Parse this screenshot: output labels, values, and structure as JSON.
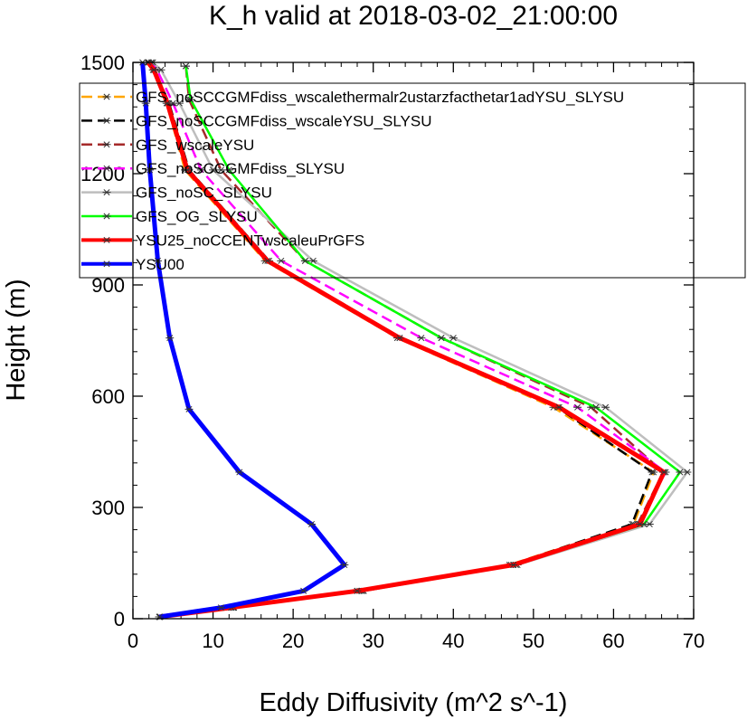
{
  "chart_data": {
    "type": "line",
    "title": "K_h valid at 2018-03-02_21:00:00",
    "xlabel": "Eddy Diffusivity (m^2 s^-1)",
    "ylabel": "Height (m)",
    "xlim": [
      0,
      70
    ],
    "ylim": [
      0,
      1500
    ],
    "x_ticks": [
      0,
      10,
      20,
      30,
      40,
      50,
      60,
      70
    ],
    "y_ticks": [
      0,
      300,
      600,
      900,
      1200,
      1500
    ],
    "legend_position": "top-right",
    "series": [
      {
        "name": "GFS_noSCCGMFdiss_wscalethermalr2ustarzfacthetar1adYSU_SLYSU",
        "color": "#ffa500",
        "dash": "dashed",
        "width": 2.5,
        "points": [
          [
            3.3,
            5
          ],
          [
            12,
            30
          ],
          [
            28,
            75
          ],
          [
            47,
            145
          ],
          [
            62.5,
            255
          ],
          [
            65,
            395
          ],
          [
            52.5,
            570
          ],
          [
            33,
            757
          ],
          [
            16.5,
            965
          ],
          [
            6.5,
            1210
          ],
          [
            4.2,
            1390
          ],
          [
            2.5,
            1480
          ],
          [
            1.8,
            1500
          ]
        ]
      },
      {
        "name": "GFS_noSCCGMFdiss_wscaleYSU_SLYSU",
        "color": "#000000",
        "dash": "dashed",
        "width": 2.5,
        "points": [
          [
            3.3,
            5
          ],
          [
            12.2,
            30
          ],
          [
            28.3,
            75
          ],
          [
            47.2,
            145
          ],
          [
            62.3,
            255
          ],
          [
            64.8,
            395
          ],
          [
            53,
            570
          ],
          [
            33.3,
            757
          ],
          [
            17,
            965
          ],
          [
            7,
            1210
          ],
          [
            4.5,
            1390
          ],
          [
            2.7,
            1480
          ],
          [
            2,
            1500
          ]
        ]
      },
      {
        "name": "GFS_wscaleYSU",
        "color": "#a52a2a",
        "dash": "dashed",
        "width": 2.5,
        "points": [
          [
            3.3,
            5
          ],
          [
            12.5,
            30
          ],
          [
            28.8,
            75
          ],
          [
            47.8,
            145
          ],
          [
            63,
            255
          ],
          [
            66.2,
            395
          ],
          [
            57.2,
            570
          ],
          [
            38.5,
            757
          ],
          [
            21.5,
            965
          ],
          [
            11,
            1210
          ],
          [
            7,
            1400
          ],
          [
            6.6,
            1490
          ]
        ]
      },
      {
        "name": "GFS_noSCCGMFdiss_SLYSU",
        "color": "#ff00ff",
        "dash": "dashed",
        "width": 2.5,
        "points": [
          [
            3.3,
            5
          ],
          [
            12.5,
            30
          ],
          [
            28.5,
            75
          ],
          [
            47.5,
            145
          ],
          [
            63.2,
            255
          ],
          [
            66.5,
            395
          ],
          [
            55.5,
            570
          ],
          [
            36,
            757
          ],
          [
            18.5,
            965
          ],
          [
            8.5,
            1210
          ],
          [
            5,
            1390
          ],
          [
            3,
            1480
          ],
          [
            2.3,
            1500
          ]
        ]
      },
      {
        "name": "GFS_noSC_SLYSU",
        "color": "#bebebe",
        "dash": "solid",
        "width": 2.5,
        "points": [
          [
            3.4,
            5
          ],
          [
            12.6,
            30
          ],
          [
            28.8,
            75
          ],
          [
            48,
            145
          ],
          [
            64.5,
            255
          ],
          [
            69.2,
            395
          ],
          [
            59,
            570
          ],
          [
            40,
            757
          ],
          [
            22.5,
            965
          ],
          [
            10,
            1210
          ],
          [
            5.8,
            1390
          ],
          [
            3.5,
            1480
          ],
          [
            2.5,
            1500
          ]
        ]
      },
      {
        "name": "GFS_OG_SLYSU",
        "color": "#00ff00",
        "dash": "solid",
        "width": 2.5,
        "points": [
          [
            3.4,
            5
          ],
          [
            12.6,
            30
          ],
          [
            28.6,
            75
          ],
          [
            47.8,
            145
          ],
          [
            63.8,
            255
          ],
          [
            68.3,
            395
          ],
          [
            57.8,
            570
          ],
          [
            38.5,
            757
          ],
          [
            21.5,
            965
          ],
          [
            12,
            1210
          ],
          [
            7.2,
            1400
          ],
          [
            6.6,
            1490
          ]
        ]
      },
      {
        "name": "YSU25_noCCENTwscaleuPrGFS",
        "color": "#ff0000",
        "dash": "solid",
        "width": 5,
        "points": [
          [
            3.3,
            5
          ],
          [
            12.3,
            30
          ],
          [
            28,
            75
          ],
          [
            47.5,
            145
          ],
          [
            63.3,
            255
          ],
          [
            66.3,
            395
          ],
          [
            53.2,
            570
          ],
          [
            33.3,
            757
          ],
          [
            16.8,
            965
          ],
          [
            6.8,
            1210
          ],
          [
            4.3,
            1390
          ],
          [
            2.6,
            1480
          ],
          [
            1.9,
            1500
          ]
        ]
      },
      {
        "name": "YSU00",
        "color": "#0000ff",
        "dash": "solid",
        "width": 5,
        "points": [
          [
            3.3,
            5
          ],
          [
            11,
            30
          ],
          [
            21.3,
            75
          ],
          [
            26.4,
            145
          ],
          [
            22.3,
            255
          ],
          [
            13.3,
            395
          ],
          [
            7,
            565
          ],
          [
            4.6,
            757
          ],
          [
            3.1,
            965
          ],
          [
            2.1,
            1210
          ],
          [
            1.6,
            1390
          ],
          [
            1.2,
            1500
          ]
        ]
      }
    ]
  }
}
